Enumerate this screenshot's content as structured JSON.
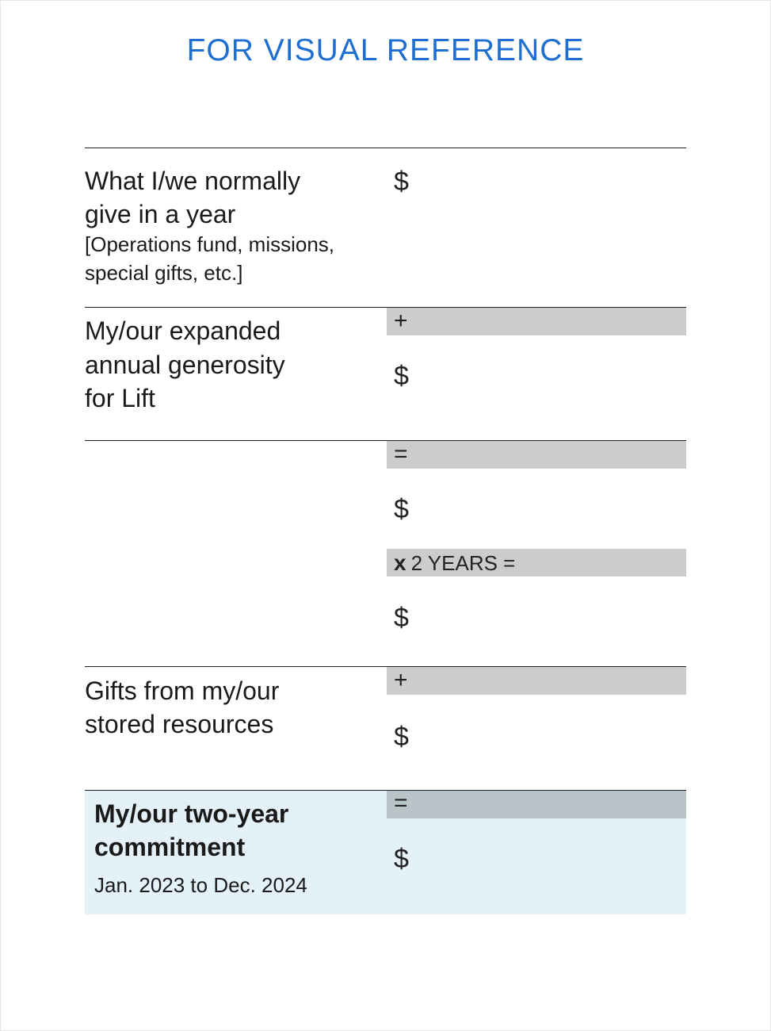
{
  "title": "FOR VISUAL REFERENCE",
  "currency_symbol": "$",
  "rows": {
    "normal_giving": {
      "label_line1": "What I/we normally",
      "label_line2": "give in a year",
      "note_line1": "[Operations fund, missions,",
      "note_line2": "special gifts, etc.]"
    },
    "expanded_generosity": {
      "operator": "+",
      "label_line1": "My/our expanded",
      "label_line2": "annual generosity",
      "label_line3": "for Lift"
    },
    "annual_total": {
      "operator": "="
    },
    "two_years": {
      "operator_x": "x",
      "label": "2 YEARS ="
    },
    "stored_resources": {
      "operator": "+",
      "label_line1": "Gifts from my/our",
      "label_line2": "stored resources"
    },
    "commitment": {
      "operator": "=",
      "label_line1": "My/our two-year",
      "label_line2": "commitment",
      "date_range": "Jan. 2023 to Dec. 2024"
    }
  },
  "colors": {
    "title": "#1f6fd1",
    "operator_bar": "#cccccc",
    "commitment_bar": "#b9c4c8",
    "commitment_background": "#e4f1f8"
  }
}
